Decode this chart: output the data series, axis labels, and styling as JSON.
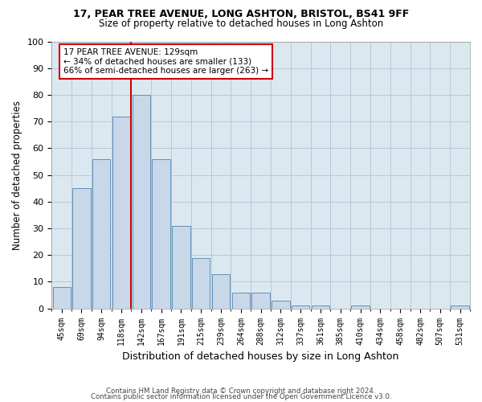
{
  "title1": "17, PEAR TREE AVENUE, LONG ASHTON, BRISTOL, BS41 9FF",
  "title2": "Size of property relative to detached houses in Long Ashton",
  "xlabel": "Distribution of detached houses by size in Long Ashton",
  "ylabel": "Number of detached properties",
  "footer1": "Contains HM Land Registry data © Crown copyright and database right 2024.",
  "footer2": "Contains public sector information licensed under the Open Government Licence v3.0.",
  "bar_labels": [
    "45sqm",
    "69sqm",
    "94sqm",
    "118sqm",
    "142sqm",
    "167sqm",
    "191sqm",
    "215sqm",
    "239sqm",
    "264sqm",
    "288sqm",
    "312sqm",
    "337sqm",
    "361sqm",
    "385sqm",
    "410sqm",
    "434sqm",
    "458sqm",
    "482sqm",
    "507sqm",
    "531sqm"
  ],
  "bar_values": [
    8,
    45,
    56,
    72,
    80,
    56,
    31,
    19,
    13,
    6,
    6,
    3,
    1,
    1,
    0,
    1,
    0,
    0,
    0,
    0,
    1
  ],
  "bar_color": "#c8d8e8",
  "bar_edge_color": "#6090b8",
  "annotation_text": "17 PEAR TREE AVENUE: 129sqm\n← 34% of detached houses are smaller (133)\n66% of semi-detached houses are larger (263) →",
  "vline_x": 3.5,
  "vline_color": "#cc0000",
  "annotation_box_color": "#ffffff",
  "annotation_box_edge": "#cc0000",
  "grid_color": "#b8c8d8",
  "background_color": "#dce8f0",
  "fig_background": "#ffffff",
  "ylim": [
    0,
    100
  ],
  "yticks": [
    0,
    10,
    20,
    30,
    40,
    50,
    60,
    70,
    80,
    90,
    100
  ]
}
